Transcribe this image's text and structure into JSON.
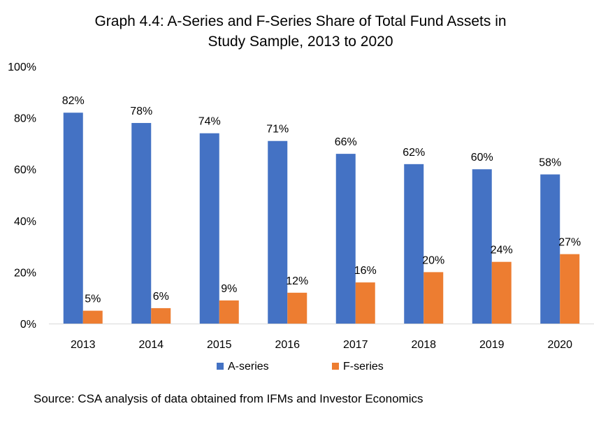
{
  "chart_data": {
    "type": "bar",
    "title_line1": "Graph 4.4: A-Series and F-Series  Share of Total Fund Assets in",
    "title_line2": "Study Sample, 2013 to 2020",
    "categories": [
      "2013",
      "2014",
      "2015",
      "2016",
      "2017",
      "2018",
      "2019",
      "2020"
    ],
    "series": [
      {
        "name": "A-series",
        "color": "#4472C4",
        "values": [
          82,
          78,
          74,
          71,
          66,
          62,
          60,
          58
        ],
        "labels": [
          "82%",
          "78%",
          "74%",
          "71%",
          "66%",
          "62%",
          "60%",
          "58%"
        ]
      },
      {
        "name": "F-series",
        "color": "#ED7D31",
        "values": [
          5,
          6,
          9,
          12,
          16,
          20,
          24,
          27
        ],
        "labels": [
          "5%",
          "6%",
          "9%",
          "12%",
          "16%",
          "20%",
          "24%",
          "27%"
        ]
      }
    ],
    "yticks": [
      "0%",
      "20%",
      "40%",
      "60%",
      "80%",
      "100%"
    ],
    "ylim": [
      0,
      100
    ],
    "xlabel": "",
    "ylabel": "",
    "legend_position": "bottom",
    "grid": false
  },
  "source": "Source: CSA analysis of data obtained from IFMs and Investor Economics"
}
